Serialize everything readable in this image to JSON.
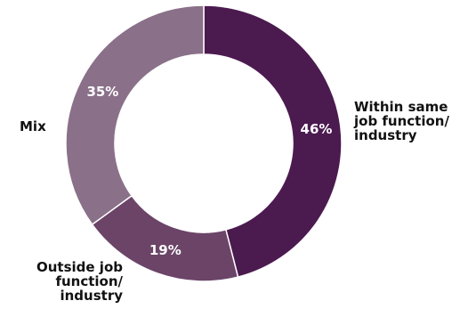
{
  "chart_data": {
    "type": "pie",
    "title": "",
    "categories": [
      "Within same\njob function/\nindustry",
      "Outside job\nfunction/\nindustry",
      "Mix"
    ],
    "values": [
      46,
      19,
      35
    ],
    "value_labels": [
      "46%",
      "19%",
      "35%"
    ],
    "colors": [
      "#4b1a4f",
      "#6b4468",
      "#8a7089"
    ],
    "donut": true
  }
}
